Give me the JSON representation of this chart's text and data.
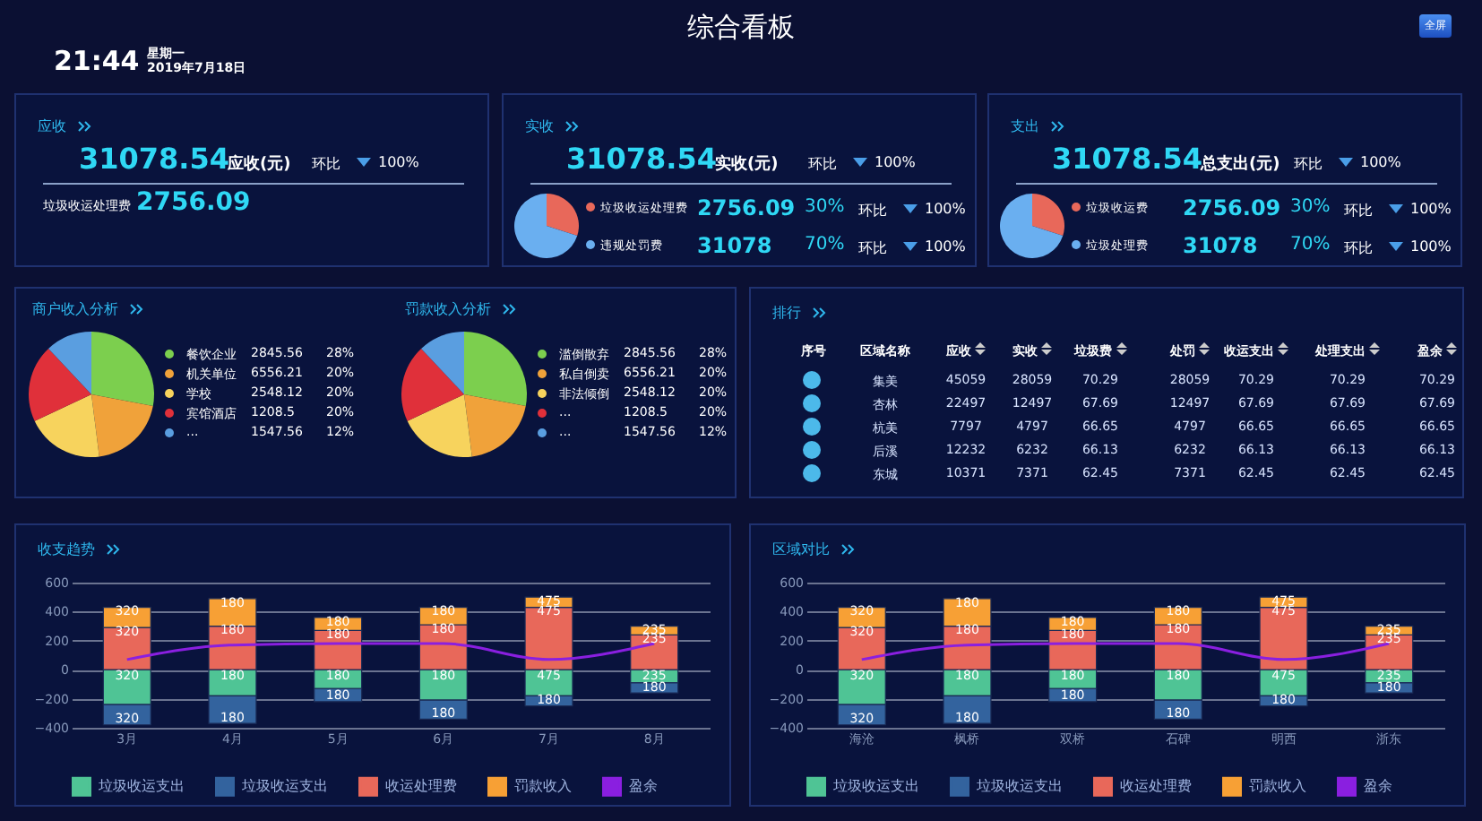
{
  "chart_data": [
    {
      "type": "other",
      "title": "综合看板",
      "annotations": [
        "21:44",
        "星期一",
        "2019年7月18日",
        "全屏"
      ]
    },
    {
      "type": "other",
      "title": "应收",
      "annotations": [
        "31078.54",
        "应收(元)",
        "环比",
        "100%",
        "垃圾收运处理费",
        "2756.09"
      ]
    },
    {
      "type": "pie",
      "title": "实收",
      "annotations": [
        "31078.54",
        "实收(元)",
        "环比",
        "100%",
        "2756.09",
        "30%",
        "环比",
        "100%",
        "31078",
        "70%",
        "环比",
        "100%"
      ],
      "categories": [
        "垃圾收运处理费",
        "违规处罚费"
      ],
      "values": [
        30,
        70
      ],
      "colors": [
        "#e8685a",
        "#6aaff0"
      ],
      "legend": "right"
    },
    {
      "type": "pie",
      "title": "支出",
      "annotations": [
        "31078.54",
        "总支出(元)",
        "环比",
        "100%",
        "2756.09",
        "30%",
        "环比",
        "100%",
        "31078",
        "70%",
        "环比",
        "100%"
      ],
      "categories": [
        "垃圾收运费",
        "垃圾处理费"
      ],
      "values": [
        30,
        70
      ],
      "colors": [
        "#e8685a",
        "#6aaff0"
      ],
      "legend": "right"
    },
    {
      "type": "pie",
      "title": "商户收入分析",
      "categories": [
        "餐饮企业",
        "机关单位",
        "学校",
        "宾馆酒店",
        "..."
      ],
      "values": [
        28,
        20,
        20,
        20,
        12
      ],
      "colors": [
        "#7ccf4e",
        "#f0a23a",
        "#f7d35d",
        "#e0303a",
        "#5a9ee0"
      ],
      "annotations": [
        "2845.56",
        "28%",
        "6556.21",
        "20%",
        "2548.12",
        "20%",
        "1208.5",
        "20%",
        "1547.56",
        "12%"
      ],
      "legend": "right"
    },
    {
      "type": "pie",
      "title": "罚款收入分析",
      "categories": [
        "滥倒散弃",
        "私自倒卖",
        "非法倾倒",
        "...",
        "..."
      ],
      "values": [
        28,
        20,
        20,
        20,
        12
      ],
      "colors": [
        "#7ccf4e",
        "#f0a23a",
        "#f7d35d",
        "#e0303a",
        "#5a9ee0"
      ],
      "annotations": [
        "2845.56",
        "28%",
        "6556.21",
        "20%",
        "2548.12",
        "20%",
        "1208.5",
        "20%",
        "1547.56",
        "12%"
      ],
      "legend": "right"
    },
    {
      "type": "other",
      "title": "排行",
      "categories": [
        "序号",
        "区域名称",
        "应收",
        "实收",
        "垃圾费",
        "处罚",
        "收运支出",
        "处理支出",
        "盈余"
      ],
      "cell_labels": [
        [
          null,
          "集美",
          "45059",
          "28059",
          "70.29",
          "28059",
          "70.29",
          "70.29",
          "70.29"
        ],
        [
          null,
          "杏林",
          "22497",
          "12497",
          "67.69",
          "12497",
          "67.69",
          "67.69",
          "67.69"
        ],
        [
          null,
          "杭美",
          "7797",
          "4797",
          "66.65",
          "4797",
          "66.65",
          "66.65",
          "66.65"
        ],
        [
          null,
          "后溪",
          "12232",
          "6232",
          "66.13",
          "6232",
          "66.13",
          "66.13",
          "66.13"
        ],
        [
          null,
          "东城",
          "10371",
          "7371",
          "62.45",
          "7371",
          "62.45",
          "62.45",
          "62.45"
        ]
      ]
    },
    {
      "type": "bar",
      "title": "收支趋势",
      "stacked": true,
      "categories": [
        "3月",
        "4月",
        "5月",
        "6月",
        "7月",
        "8月"
      ],
      "ylim": [
        -400,
        600
      ],
      "yticks": [
        -400,
        -200,
        0,
        200,
        400,
        600
      ],
      "grid": "y",
      "legend": "bottom",
      "series": [
        {
          "name": "垃圾收运支出",
          "color": "#4fc495",
          "values": [
            -240,
            -180,
            -130,
            -210,
            -180,
            -90
          ]
        },
        {
          "name": "垃圾收运支出",
          "color": "#33639e",
          "values": [
            -140,
            -190,
            -90,
            -130,
            -70,
            -70
          ]
        },
        {
          "name": "收运处理费",
          "color": "#e8685a",
          "values": [
            290,
            300,
            270,
            310,
            430,
            240
          ]
        },
        {
          "name": "罚款收入",
          "color": "#f7a035",
          "values": [
            140,
            190,
            90,
            120,
            70,
            60
          ]
        },
        {
          "name": "盈余",
          "color": "#8a1fe0",
          "type": "line",
          "values": [
            70,
            170,
            180,
            180,
            70,
            180
          ]
        }
      ],
      "annotations": [
        {
          "text": "320",
          "x": "3月",
          "y": 400
        },
        {
          "text": "180",
          "x": "4月",
          "y": 460
        },
        {
          "text": "180",
          "x": "5月",
          "y": 330
        },
        {
          "text": "180",
          "x": "6月",
          "y": 400
        },
        {
          "text": "475",
          "x": "7月",
          "y": 470
        },
        {
          "text": "235",
          "x": "8月",
          "y": 270
        },
        {
          "text": "320",
          "x": "3月",
          "y": 260
        },
        {
          "text": "180",
          "x": "4月",
          "y": 270
        },
        {
          "text": "180",
          "x": "5月",
          "y": 240
        },
        {
          "text": "180",
          "x": "6月",
          "y": 280
        },
        {
          "text": "475",
          "x": "7月",
          "y": 400
        },
        {
          "text": "235",
          "x": "8月",
          "y": 210
        },
        {
          "text": "320",
          "x": "3月",
          "y": -40
        },
        {
          "text": "180",
          "x": "4月",
          "y": -40
        },
        {
          "text": "180",
          "x": "5月",
          "y": -40
        },
        {
          "text": "180",
          "x": "6月",
          "y": -40
        },
        {
          "text": "475",
          "x": "7月",
          "y": -40
        },
        {
          "text": "235",
          "x": "8月",
          "y": -40
        },
        {
          "text": "320",
          "x": "3月",
          "y": -340
        },
        {
          "text": "180",
          "x": "4月",
          "y": -330
        },
        {
          "text": "180",
          "x": "5月",
          "y": -180
        },
        {
          "text": "180",
          "x": "6月",
          "y": -300
        },
        {
          "text": "180",
          "x": "7月",
          "y": -210
        },
        {
          "text": "180",
          "x": "8月",
          "y": -120
        }
      ]
    },
    {
      "type": "bar",
      "title": "区域对比",
      "stacked": true,
      "categories": [
        "海沧",
        "枫桥",
        "双桥",
        "石碑",
        "明西",
        "浙东"
      ],
      "ylim": [
        -400,
        600
      ],
      "yticks": [
        -400,
        -200,
        0,
        200,
        400,
        600
      ],
      "grid": "y",
      "legend": "bottom",
      "series": [
        {
          "name": "垃圾收运支出",
          "color": "#4fc495",
          "values": [
            -240,
            -180,
            -130,
            -210,
            -180,
            -90
          ]
        },
        {
          "name": "垃圾收运支出",
          "color": "#33639e",
          "values": [
            -140,
            -190,
            -90,
            -130,
            -70,
            -70
          ]
        },
        {
          "name": "收运处理费",
          "color": "#e8685a",
          "values": [
            290,
            300,
            270,
            310,
            430,
            240
          ]
        },
        {
          "name": "罚款收入",
          "color": "#f7a035",
          "values": [
            140,
            190,
            90,
            120,
            70,
            60
          ]
        },
        {
          "name": "盈余",
          "color": "#8a1fe0",
          "type": "line",
          "values": [
            70,
            170,
            180,
            180,
            70,
            180
          ]
        }
      ],
      "annotations": [
        {
          "text": "320",
          "x": "海沧",
          "y": 400
        },
        {
          "text": "180",
          "x": "枫桥",
          "y": 460
        },
        {
          "text": "180",
          "x": "双桥",
          "y": 330
        },
        {
          "text": "180",
          "x": "石碑",
          "y": 400
        },
        {
          "text": "475",
          "x": "明西",
          "y": 470
        },
        {
          "text": "235",
          "x": "浙东",
          "y": 270
        },
        {
          "text": "320",
          "x": "海沧",
          "y": 260
        },
        {
          "text": "180",
          "x": "枫桥",
          "y": 270
        },
        {
          "text": "180",
          "x": "双桥",
          "y": 240
        },
        {
          "text": "180",
          "x": "石碑",
          "y": 280
        },
        {
          "text": "475",
          "x": "明西",
          "y": 400
        },
        {
          "text": "235",
          "x": "浙东",
          "y": 210
        },
        {
          "text": "320",
          "x": "海沧",
          "y": -40
        },
        {
          "text": "180",
          "x": "枫桥",
          "y": -40
        },
        {
          "text": "180",
          "x": "双桥",
          "y": -40
        },
        {
          "text": "180",
          "x": "石碑",
          "y": -40
        },
        {
          "text": "475",
          "x": "明西",
          "y": -40
        },
        {
          "text": "235",
          "x": "浙东",
          "y": -40
        },
        {
          "text": "320",
          "x": "海沧",
          "y": -340
        },
        {
          "text": "180",
          "x": "枫桥",
          "y": -330
        },
        {
          "text": "180",
          "x": "双桥",
          "y": -180
        },
        {
          "text": "180",
          "x": "石碑",
          "y": -300
        },
        {
          "text": "180",
          "x": "明西",
          "y": -210
        },
        {
          "text": "180",
          "x": "浙东",
          "y": -120
        }
      ]
    }
  ]
}
